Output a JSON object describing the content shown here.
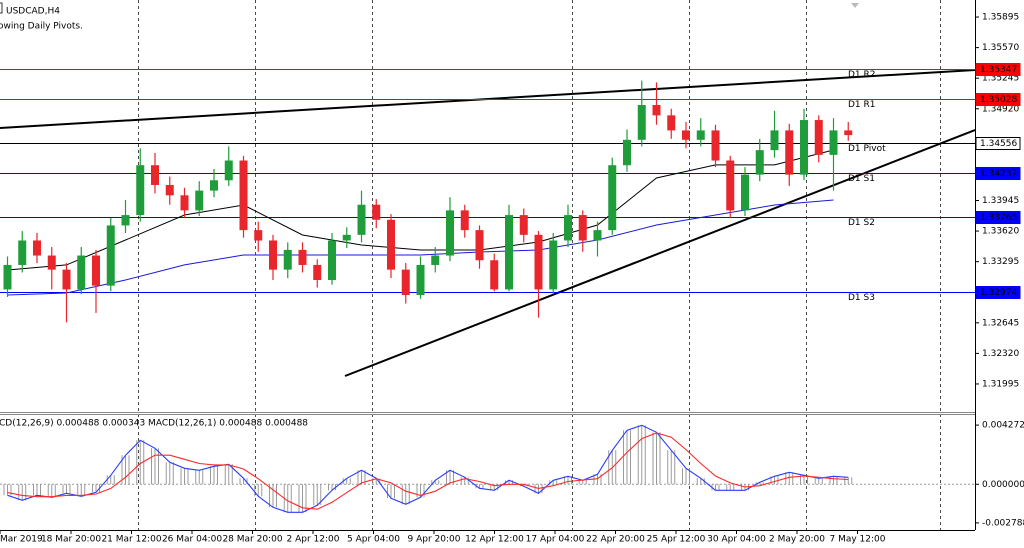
{
  "chart_data": {
    "type": "candlestick",
    "title": "USDCAD,H4",
    "subtitle": "owing Daily Pivots.",
    "up_color": "#1f9d3a",
    "down_color": "#e8262b",
    "ylim": [
      1.31697,
      1.36076
    ],
    "yticks": [
      1.35895,
      {
        "value": 1.3557,
        "label": "1.35570"
      },
      1.35245,
      {
        "value": 1.3492,
        "label": "1.34920"
      },
      1.33945,
      {
        "value": 1.3362,
        "label": "1.33620"
      },
      1.33295,
      1.32645,
      {
        "value": 1.3232,
        "label": "1.32320"
      },
      1.31995
    ],
    "x_labels": [
      "Mar 2019",
      "18 Mar 20:00",
      "21 Mar 12:00",
      "26 Mar 04:00",
      "28 Mar 20:00",
      "2 Apr 12:00",
      "5 Apr 04:00",
      "9 Apr 20:00",
      "12 Apr 12:00",
      "17 Apr 04:00",
      "22 Apr 20:00",
      "25 Apr 12:00",
      "30 Apr 04:00",
      "2 May 20:00",
      "7 May 12:00"
    ],
    "open": [
      1.33,
      1.3326,
      1.3352,
      1.3336,
      1.3321,
      1.33,
      1.3336,
      1.3304,
      1.3368,
      1.3379,
      1.3432,
      1.3411,
      1.34,
      1.3384,
      1.3405,
      1.3416,
      1.3437,
      1.3363,
      1.3352,
      1.3321,
      1.3342,
      1.3326,
      1.331,
      1.3352,
      1.3358,
      1.339,
      1.3374,
      1.3321,
      1.3294,
      1.3326,
      1.3336,
      1.3384,
      1.3363,
      1.3331,
      1.33,
      1.3379,
      1.3358,
      1.33,
      1.3352,
      1.3379,
      1.3352,
      1.3363,
      1.3432,
      1.3459,
      1.3496,
      1.3485,
      1.3469,
      1.3459,
      1.3469,
      1.3437,
      1.3384,
      1.3422,
      1.3448,
      1.3469,
      1.3422,
      1.348,
      1.3443,
      1.3469
    ],
    "high": [
      1.3335,
      1.3362,
      1.336,
      1.3345,
      1.3328,
      1.3345,
      1.3342,
      1.3376,
      1.3395,
      1.345,
      1.3445,
      1.342,
      1.3408,
      1.3415,
      1.3428,
      1.3452,
      1.3442,
      1.3372,
      1.3358,
      1.335,
      1.335,
      1.3332,
      1.336,
      1.3366,
      1.3405,
      1.3396,
      1.338,
      1.3328,
      1.3335,
      1.3345,
      1.3398,
      1.339,
      1.3368,
      1.3338,
      1.339,
      1.3386,
      1.3362,
      1.336,
      1.339,
      1.3384,
      1.3372,
      1.344,
      1.347,
      1.3522,
      1.352,
      1.3492,
      1.3478,
      1.3482,
      1.3475,
      1.3442,
      1.343,
      1.346,
      1.349,
      1.3476,
      1.3492,
      1.3485,
      1.3482,
      1.3478
    ],
    "low": [
      1.3292,
      1.3318,
      1.3328,
      1.33,
      1.3265,
      1.3295,
      1.3275,
      1.3298,
      1.336,
      1.3372,
      1.3402,
      1.339,
      1.3376,
      1.3378,
      1.3398,
      1.341,
      1.3355,
      1.334,
      1.331,
      1.3312,
      1.3318,
      1.3302,
      1.3305,
      1.3344,
      1.335,
      1.3365,
      1.3312,
      1.3285,
      1.329,
      1.3318,
      1.333,
      1.3355,
      1.3322,
      1.3298,
      1.3298,
      1.335,
      1.327,
      1.3295,
      1.3345,
      1.334,
      1.3335,
      1.3358,
      1.3425,
      1.3452,
      1.3475,
      1.346,
      1.345,
      1.3452,
      1.343,
      1.3376,
      1.3378,
      1.3415,
      1.344,
      1.341,
      1.3416,
      1.3435,
      1.3405,
      1.3458
    ],
    "close": [
      1.3326,
      1.3352,
      1.3336,
      1.3321,
      1.33,
      1.3336,
      1.3304,
      1.3368,
      1.3379,
      1.3432,
      1.3411,
      1.34,
      1.3384,
      1.3405,
      1.3416,
      1.3437,
      1.3363,
      1.3352,
      1.3321,
      1.3342,
      1.3326,
      1.331,
      1.3352,
      1.3358,
      1.339,
      1.3374,
      1.3321,
      1.3294,
      1.3326,
      1.3336,
      1.3384,
      1.3363,
      1.3331,
      1.33,
      1.3379,
      1.3358,
      1.33,
      1.3352,
      1.3379,
      1.3352,
      1.3363,
      1.3432,
      1.3459,
      1.3496,
      1.3485,
      1.3469,
      1.3459,
      1.3469,
      1.3437,
      1.3384,
      1.3422,
      1.3448,
      1.3469,
      1.3422,
      1.348,
      1.3443,
      1.3469,
      1.3464
    ],
    "moving_averages": [
      {
        "color": "#000000",
        "x": [
          0,
          4,
          8,
          12,
          16,
          20,
          24,
          28,
          32,
          36,
          40,
          44,
          48,
          52,
          56
        ],
        "values": [
          1.33206,
          1.3326,
          1.33525,
          1.33791,
          1.33897,
          1.33578,
          1.33472,
          1.33419,
          1.33419,
          1.33504,
          1.33685,
          1.34184,
          1.34323,
          1.34323,
          1.34482
        ]
      },
      {
        "color": "#1a1ad8",
        "x": [
          0,
          4,
          8,
          12,
          16,
          20,
          24,
          28,
          32,
          36,
          40,
          44,
          48,
          52,
          56
        ],
        "values": [
          1.32941,
          1.32962,
          1.331,
          1.3326,
          1.33366,
          1.33366,
          1.33366,
          1.33366,
          1.33398,
          1.33419,
          1.33525,
          1.33685,
          1.33791,
          1.33897,
          1.3395
        ]
      }
    ],
    "pivots": [
      {
        "name": "D1 R2",
        "value": 1.35347,
        "color": "#ff0000"
      },
      {
        "name": "D1 R1",
        "value": 1.35028,
        "color": "#ff0000"
      },
      {
        "name": "D1 Pivot",
        "value": 1.34556,
        "color": "#000000"
      },
      {
        "name": "D1 S1",
        "value": 1.34237,
        "color": "#0000ff"
      },
      {
        "name": "D1 S2",
        "value": 1.33765,
        "color": "#0000ff"
      },
      {
        "name": "D1 S3",
        "value": 1.32974,
        "color": "#0000ff"
      }
    ],
    "macd": {
      "title": "CD(12,26,9) 0.000488 0.000343 MACD(12,26,1) 0.000488 0.000488",
      "ylim": [
        -0.0033,
        0.005
      ],
      "yticks": [
        0.004272,
        {
          "value": 0,
          "label": "0.000000"
        },
        -0.002788
      ],
      "histogram_color": "#9a9a9a",
      "main": {
        "color": "#2a3cff",
        "values": [
          -0.000794,
          -0.001155,
          -0.000794,
          -0.000938,
          -0.00065,
          -0.000866,
          -0.000577,
          0.00065,
          0.002093,
          0.003176,
          0.002598,
          0.001588,
          0.001155,
          0.00101,
          0.001299,
          0.001444,
          0.000433,
          -0.000866,
          -0.00166,
          -0.002021,
          -0.002021,
          -0.001516,
          -0.000433,
          0.000433,
          0.00101,
          0.000433,
          -0.00101,
          -0.001444,
          -0.000938,
          0.000289,
          0.00101,
          0.000505,
          -0.000289,
          -0.000433,
          0.000289,
          -0.000144,
          -0.00065,
          0.000289,
          0.000577,
          0.000289,
          0.000722,
          0.002454,
          0.003898,
          0.004258,
          0.003753,
          0.002454,
          0.001155,
          0.000433,
          -0.000433,
          -0.000433,
          -0.000433,
          0.000144,
          0.000577,
          0.000866,
          0.00065,
          0.000433,
          0.000577,
          0.000505
        ]
      },
      "signal": {
        "color": "#ff2a2a",
        "values": [
          -0.0006,
          -0.0008,
          -0.0009,
          -0.0009,
          -0.0008,
          -0.0008,
          -0.0007,
          -0.0003,
          0.0005,
          0.0015,
          0.0021,
          0.0021,
          0.0018,
          0.0015,
          0.0014,
          0.0014,
          0.0011,
          0.0004,
          -0.0004,
          -0.0012,
          -0.0017,
          -0.0018,
          -0.0013,
          -0.0006,
          0.0001,
          0.0004,
          0.0001,
          -0.0005,
          -0.0008,
          -0.0005,
          0.0001,
          0.0004,
          0.0002,
          -0.0001,
          0,
          0,
          -0.0003,
          -0.0001,
          0.0002,
          0.0003,
          0.0004,
          0.0012,
          0.0023,
          0.0033,
          0.0037,
          0.0034,
          0.0025,
          0.0015,
          0.0006,
          0.0001,
          -0.0002,
          -0.0001,
          0.0002,
          0.0005,
          0.0006,
          0.0005,
          0.0004,
          0.000343
        ]
      }
    }
  }
}
